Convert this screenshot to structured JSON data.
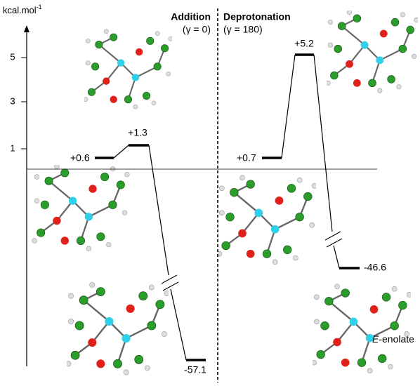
{
  "axis": {
    "label": "kcal.mol",
    "label_sup": "-1",
    "ticks": [
      "1",
      "3",
      "5"
    ]
  },
  "panels": [
    {
      "title": "Addition",
      "subtitle": "(γ = 0)",
      "levels": [
        "+0.6",
        "+1.3",
        "-57.1"
      ]
    },
    {
      "title": "Deprotonation",
      "subtitle": "(γ = 180)",
      "levels": [
        "+0.7",
        "+5.2",
        "-46.6"
      ],
      "annotation_italic": "E",
      "annotation": "-enolate"
    }
  ]
}
